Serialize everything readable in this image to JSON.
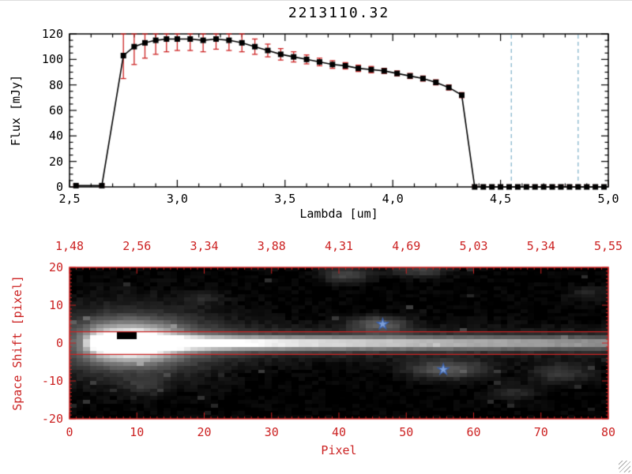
{
  "window": {
    "title": "2213110.32"
  },
  "chart_data": [
    {
      "type": "line",
      "title": "2213110.32",
      "xlabel": "Lambda [um]",
      "ylabel": "Flux [mJy]",
      "xlim": [
        2.5,
        5.0
      ],
      "ylim": [
        0,
        120
      ],
      "xticks": [
        2.5,
        3.0,
        3.5,
        4.0,
        4.5,
        5.0
      ],
      "xtick_labels": [
        "2,5",
        "3,0",
        "3,5",
        "4,0",
        "4,5",
        "5,0"
      ],
      "yticks": [
        0,
        20,
        40,
        60,
        80,
        100,
        120
      ],
      "ytick_labels": [
        "0",
        "20",
        "40",
        "60",
        "80",
        "100",
        "120"
      ],
      "x_minor_step": 0.1,
      "y_minor_step": 5,
      "grid": false,
      "series": [
        {
          "name": "flux",
          "marker": "square",
          "line_color": "#000000",
          "marker_color": "#000000",
          "error_color": "#cc2222",
          "x": [
            2.53,
            2.65,
            2.75,
            2.8,
            2.85,
            2.9,
            2.95,
            3.0,
            3.06,
            3.12,
            3.18,
            3.24,
            3.3,
            3.36,
            3.42,
            3.48,
            3.54,
            3.6,
            3.66,
            3.72,
            3.78,
            3.84,
            3.9,
            3.96,
            4.02,
            4.08,
            4.14,
            4.2,
            4.26,
            4.32,
            4.38,
            4.42,
            4.46,
            4.5,
            4.54,
            4.58,
            4.62,
            4.66,
            4.7,
            4.74,
            4.78,
            4.82,
            4.86,
            4.9,
            4.94,
            4.98
          ],
          "y": [
            1,
            1,
            103,
            110,
            113,
            115,
            116,
            116,
            116,
            115,
            116,
            115,
            113,
            110,
            107,
            104,
            102,
            100,
            98,
            96,
            95,
            93,
            92,
            91,
            89,
            87,
            85,
            82,
            78,
            72,
            0,
            0,
            0,
            0,
            0,
            0,
            0,
            0,
            0,
            0,
            0,
            0,
            0,
            0,
            0,
            0
          ],
          "yerr": [
            1,
            1,
            18,
            14,
            12,
            11,
            10,
            9,
            9,
            9,
            8,
            8,
            7,
            6,
            5,
            4.5,
            4,
            3.5,
            3,
            3,
            2.5,
            2.5,
            2.5,
            2,
            2,
            2,
            2,
            2,
            2,
            2,
            1.5,
            1.5,
            1.5,
            1.5,
            1.5,
            1.5,
            1.5,
            1.5,
            1.5,
            1.5,
            1.5,
            1.5,
            1.5,
            1.5,
            1.5,
            1.5
          ]
        }
      ],
      "vlines": {
        "x": [
          4.55,
          4.86
        ],
        "style": "dashed",
        "color": "#85b5cc"
      }
    },
    {
      "type": "heatmap",
      "xlabel": "Pixel",
      "ylabel": "Space Shift [pixel]",
      "xlim": [
        0,
        80
      ],
      "ylim": [
        -20,
        20
      ],
      "xticks": [
        0,
        10,
        20,
        30,
        40,
        50,
        60,
        70,
        80
      ],
      "xtick_labels": [
        "0",
        "10",
        "20",
        "30",
        "40",
        "50",
        "60",
        "70",
        "80"
      ],
      "yticks": [
        20,
        10,
        0,
        -10,
        -20
      ],
      "ytick_labels": [
        "20",
        "10",
        "0",
        "-10",
        "-20"
      ],
      "top_axis_labels": [
        "1,48",
        "2,56",
        "3,34",
        "3,88",
        "4,31",
        "4,69",
        "5,03",
        "5,34",
        "5,55"
      ],
      "axis_color": "#cc2222",
      "colormap": "grayscale",
      "aperture_lines_y": [
        3,
        -3
      ],
      "aperture_line_color": "#cc2222",
      "markers": [
        {
          "shape": "star",
          "x": 46.5,
          "y": 5
        },
        {
          "shape": "star",
          "x": 55.5,
          "y": -7
        }
      ],
      "marker_color": "#7d9fd6",
      "marker_edge_color": "#3a5fa8",
      "image_model": {
        "noise_seed": 42,
        "trace": {
          "y_center": 0,
          "sigma": 1.15,
          "halo": {
            "x": 9,
            "sx": 4.5,
            "sy": 3.2,
            "amp": 0.9
          }
        },
        "masked_pixels": {
          "x0": 7,
          "x1": 10,
          "y0": 0.8,
          "y1": 2.8
        },
        "blobs": [
          {
            "x": 46,
            "y": 5,
            "sx": 3,
            "sy": 1.5,
            "amp": 0.28
          },
          {
            "x": 56,
            "y": -7,
            "sx": 4,
            "sy": 1.7,
            "amp": 0.3
          },
          {
            "x": 41,
            "y": 18,
            "sx": 2.5,
            "sy": 1.5,
            "amp": 0.22
          },
          {
            "x": 52,
            "y": 19.5,
            "sx": 3,
            "sy": 1.5,
            "amp": 0.2
          },
          {
            "x": 73,
            "y": -8,
            "sx": 3,
            "sy": 1.8,
            "amp": 0.18
          },
          {
            "x": 66,
            "y": -13,
            "sx": 2.5,
            "sy": 1.5,
            "amp": 0.12
          },
          {
            "x": 20,
            "y": 12,
            "sx": 2,
            "sy": 1.2,
            "amp": 0.1
          },
          {
            "x": 11,
            "y": -11,
            "sx": 2,
            "sy": 1.5,
            "amp": 0.12
          },
          {
            "x": 77,
            "y": 13,
            "sx": 2,
            "sy": 1.5,
            "amp": 0.1
          }
        ]
      }
    }
  ]
}
